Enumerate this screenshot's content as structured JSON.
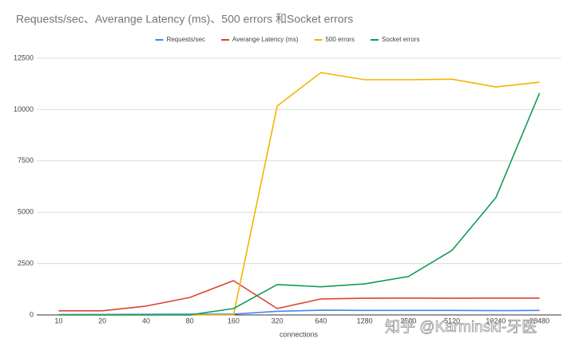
{
  "chart_data": {
    "type": "line",
    "title": "Requests/sec、Averange Latency (ms)、500 errors 和Socket errors",
    "xlabel": "connections",
    "watermark": "知乎 @Karminski-牙医",
    "categories": [
      "10",
      "20",
      "40",
      "80",
      "160",
      "320",
      "640",
      "1280",
      "2560",
      "5120",
      "10240",
      "20480"
    ],
    "series": [
      {
        "name": "Requests/sec",
        "color": "#4285f4",
        "values": [
          20,
          25,
          30,
          35,
          40,
          180,
          230,
          220,
          220,
          220,
          210,
          220
        ]
      },
      {
        "name": "Averange Latency (ms)",
        "color": "#db4437",
        "values": [
          200,
          200,
          430,
          850,
          1670,
          310,
          780,
          810,
          820,
          810,
          820,
          820
        ]
      },
      {
        "name": "500 errors",
        "color": "#f4b400",
        "values": [
          0,
          0,
          0,
          0,
          0,
          10170,
          11800,
          11450,
          11450,
          11480,
          11100,
          11330
        ]
      },
      {
        "name": "Socket errors",
        "color": "#0f9d58",
        "values": [
          0,
          0,
          0,
          0,
          310,
          1480,
          1370,
          1510,
          1870,
          3150,
          5710,
          10800
        ]
      }
    ],
    "ylim": [
      0,
      12500
    ],
    "yticks": [
      0,
      2500,
      5000,
      7500,
      10000,
      12500
    ],
    "grid": true,
    "legend": "top"
  }
}
